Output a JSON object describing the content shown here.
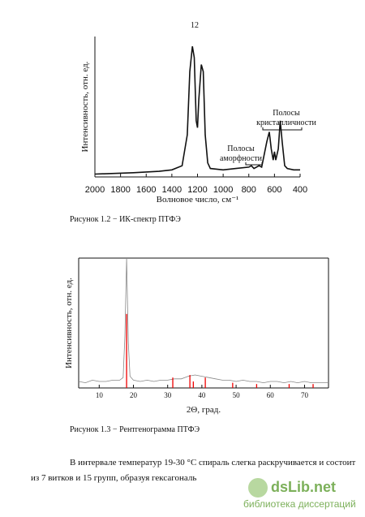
{
  "page_number": "12",
  "chart_data": [
    {
      "type": "line",
      "ylabel": "Интенсивность, отн. ед.",
      "xlabel": "Волновое число, см⁻¹",
      "xlim": [
        2000,
        400
      ],
      "ylim": [
        0,
        100
      ],
      "xticks": [
        2000,
        1800,
        1600,
        1400,
        1200,
        1000,
        800,
        600,
        400
      ],
      "annotations": [
        [
          "Полосы",
          "аморфности"
        ],
        [
          "Полосы",
          "кристалличности"
        ]
      ],
      "series": [
        {
          "color": "#111",
          "x": [
            2000,
            1700,
            1500,
            1400,
            1320,
            1280,
            1260,
            1240,
            1225,
            1210,
            1200,
            1190,
            1170,
            1155,
            1140,
            1120,
            1100,
            1000,
            900,
            800,
            780,
            760,
            720,
            700,
            660,
            640,
            625,
            610,
            600,
            590,
            570,
            555,
            540,
            520,
            500,
            450,
            400
          ],
          "values": [
            2,
            3,
            4,
            5,
            8,
            30,
            75,
            93,
            85,
            40,
            35,
            55,
            80,
            75,
            30,
            10,
            6,
            5,
            6,
            7,
            8,
            6,
            8,
            7,
            25,
            32,
            20,
            12,
            18,
            12,
            20,
            40,
            25,
            8,
            6,
            5,
            5
          ]
        }
      ]
    },
    {
      "type": "line",
      "ylabel": "Интенсивность, отн. ед.",
      "xlabel": "2Θ, град.",
      "xlim": [
        4,
        77
      ],
      "ylim": [
        0,
        100
      ],
      "xticks": [
        10,
        20,
        30,
        40,
        50,
        60,
        70
      ],
      "series": [
        {
          "color": "#888",
          "x": [
            4,
            6,
            8,
            10,
            12,
            14,
            16,
            17,
            17.5,
            18,
            18.5,
            19,
            20,
            22,
            24,
            26,
            28,
            30,
            32,
            34,
            36,
            38,
            40,
            42,
            44,
            46,
            48,
            50,
            52,
            54,
            56,
            58,
            60,
            62,
            64,
            66,
            68,
            70,
            72,
            74,
            77
          ],
          "values": [
            5,
            4,
            6,
            5,
            5,
            6,
            6,
            8,
            40,
            100,
            35,
            9,
            6,
            5,
            6,
            5,
            6,
            6,
            7,
            7,
            9,
            10,
            9,
            8,
            7,
            6,
            6,
            5,
            6,
            5,
            5,
            4,
            5,
            5,
            4,
            5,
            4,
            5,
            4,
            4,
            4
          ]
        },
        {
          "color": "#e00",
          "kind": "stem",
          "x": [
            18,
            31.5,
            36.5,
            37.5,
            41,
            49,
            56,
            65.5,
            72.5
          ],
          "values": [
            57,
            8,
            10,
            5,
            8,
            4,
            3,
            3,
            3
          ]
        }
      ]
    }
  ],
  "captions": [
    "Рисунок 1.2 − ИК-спектр ПТФЭ",
    "Рисунок 1.3 − Рентгенограмма ПТФЭ"
  ],
  "paragraph": [
    "В интервале температур 19-30 °С спираль слегка раскручивается и состоит",
    "из 7 витков и 15 групп, образуя гексагональ"
  ],
  "watermark": {
    "logo": "dsLib.net",
    "subtitle": "библиотека диссертаций"
  }
}
